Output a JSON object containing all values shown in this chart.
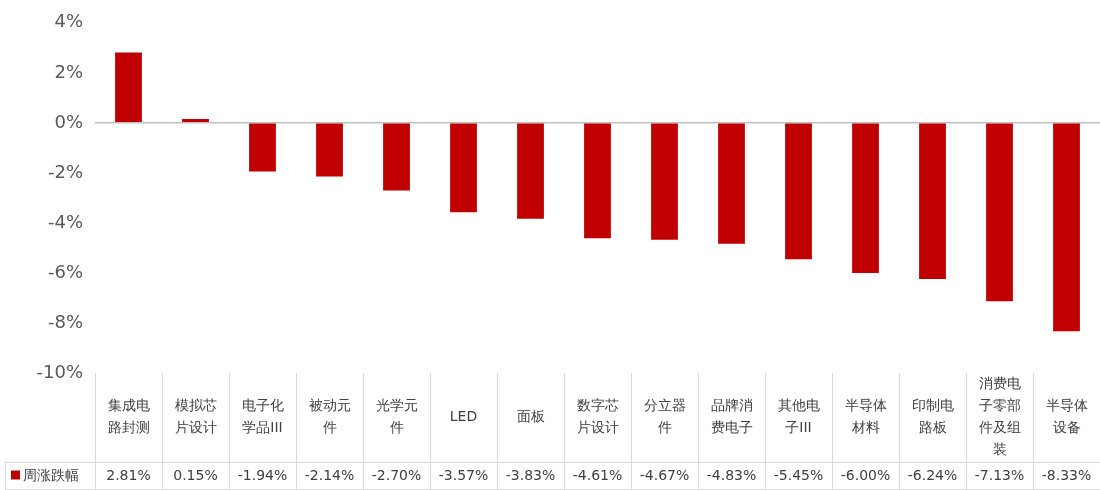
{
  "chart_data": {
    "type": "bar",
    "categories": [
      "集成电路封测",
      "模拟芯片设计",
      "电子化学品III",
      "被动元件",
      "光学元件",
      "LED",
      "面板",
      "数字芯片设计",
      "分立器件",
      "品牌消费电子",
      "其他电子III",
      "半导体材料",
      "印制电路板",
      "消费电子零部件及组装",
      "半导体设备"
    ],
    "series": [
      {
        "name": "周涨跌幅",
        "color": "#c00000",
        "values": [
          2.81,
          0.15,
          -1.94,
          -2.14,
          -2.7,
          -3.57,
          -3.83,
          -4.61,
          -4.67,
          -4.83,
          -5.45,
          -6.0,
          -6.24,
          -7.13,
          -8.33
        ],
        "value_labels": [
          "2.81%",
          "0.15%",
          "-1.94%",
          "-2.14%",
          "-2.70%",
          "-3.57%",
          "-3.83%",
          "-4.61%",
          "-4.67%",
          "-4.83%",
          "-5.45%",
          "-6.00%",
          "-6.24%",
          "-7.13%",
          "-8.33%"
        ]
      }
    ],
    "ylim": [
      -10,
      4
    ],
    "yticks": [
      {
        "value": -10,
        "label": "-10%"
      },
      {
        "value": -8,
        "label": "-8%"
      },
      {
        "value": -6,
        "label": "-6%"
      },
      {
        "value": -4,
        "label": "-4%"
      },
      {
        "value": -2,
        "label": "-2%"
      },
      {
        "value": 0,
        "label": "0%"
      },
      {
        "value": 2,
        "label": "2%"
      },
      {
        "value": 4,
        "label": "4%"
      }
    ],
    "legend": "bottom"
  }
}
